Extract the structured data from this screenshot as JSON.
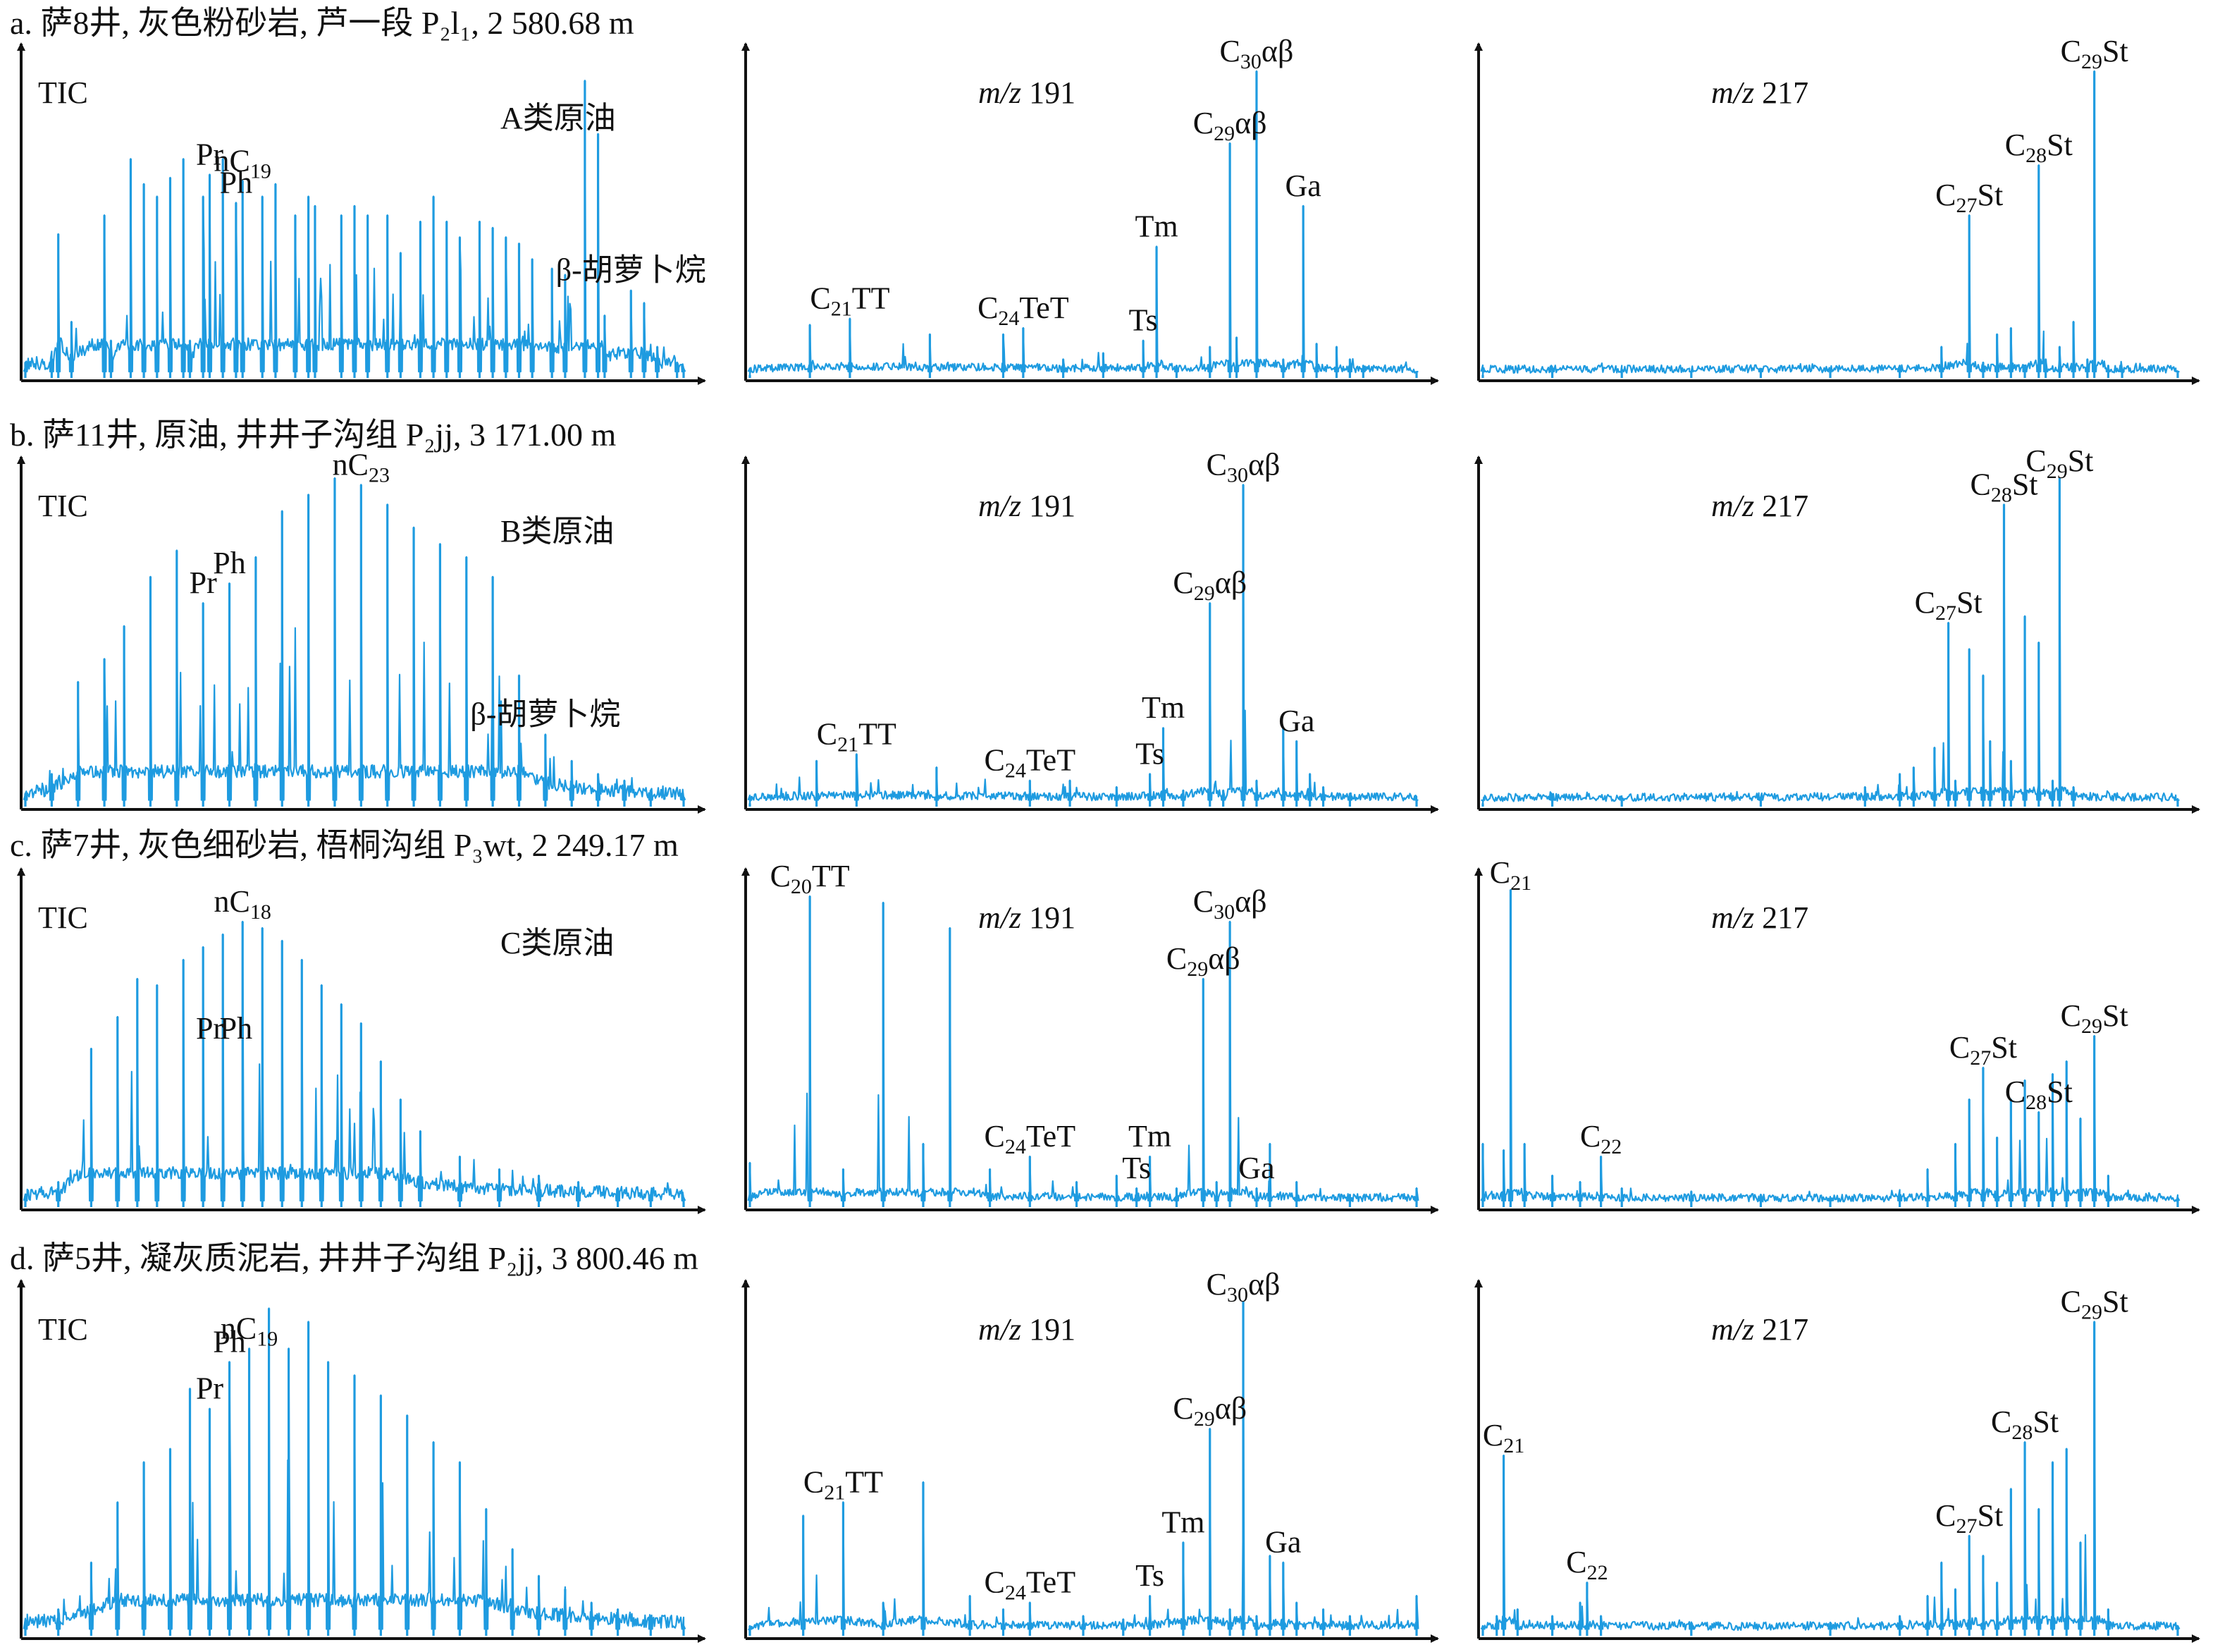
{
  "figure": {
    "colors": {
      "trace": "#1e9be0",
      "axis": "#111111",
      "text": "#111111"
    },
    "rows": [
      {
        "id": "a",
        "title": "a. 萨8井, 灰色粉砂岩, 芦一段 P₂l₁, 2 580.68 m",
        "panels": [
          {
            "type": "TIC",
            "title": "TIC",
            "oil_class": "A类原油",
            "peak_labels": [
              "nC19",
              "Pr",
              "Ph",
              "β-胡萝卜烷"
            ]
          },
          {
            "type": "m/z 191",
            "title": "m/z 191",
            "peak_labels": [
              "C21TT",
              "C24TeT",
              "Ts",
              "Tm",
              "C29αβ",
              "C30αβ",
              "Ga"
            ]
          },
          {
            "type": "m/z 217",
            "title": "m/z 217",
            "peak_labels": [
              "C27St",
              "C28St",
              "C29St"
            ]
          }
        ]
      },
      {
        "id": "b",
        "title": "b. 萨11井, 原油, 井井子沟组 P₂jj, 3 171.00 m",
        "panels": [
          {
            "type": "TIC",
            "title": "TIC",
            "oil_class": "B类原油",
            "peak_labels": [
              "nC23",
              "Pr",
              "Ph",
              "β-胡萝卜烷"
            ]
          },
          {
            "type": "m/z 191",
            "title": "m/z 191",
            "peak_labels": [
              "C21TT",
              "C24TeT",
              "Ts",
              "Tm",
              "C29αβ",
              "C30αβ",
              "Ga"
            ]
          },
          {
            "type": "m/z 217",
            "title": "m/z 217",
            "peak_labels": [
              "C27St",
              "C28St",
              "C29St"
            ]
          }
        ]
      },
      {
        "id": "c",
        "title": "c. 萨7井, 灰色细砂岩, 梧桐沟组 P₃wt, 2 249.17 m",
        "panels": [
          {
            "type": "TIC",
            "title": "TIC",
            "oil_class": "C类原油",
            "peak_labels": [
              "nC18",
              "Pr",
              "Ph"
            ]
          },
          {
            "type": "m/z 191",
            "title": "m/z 191",
            "peak_labels": [
              "C20TT",
              "C24TeT",
              "Ts",
              "Tm",
              "C29αβ",
              "C30αβ",
              "Ga"
            ]
          },
          {
            "type": "m/z 217",
            "title": "m/z 217",
            "peak_labels": [
              "C21",
              "C22",
              "C27St",
              "C28St",
              "C29St"
            ]
          }
        ]
      },
      {
        "id": "d",
        "title": "d. 萨5井, 凝灰质泥岩, 井井子沟组 P₂jj, 3 800.46 m",
        "panels": [
          {
            "type": "TIC",
            "title": "TIC",
            "peak_labels": [
              "nC19",
              "Pr",
              "Ph"
            ]
          },
          {
            "type": "m/z 191",
            "title": "m/z 191",
            "peak_labels": [
              "C21TT",
              "C24TeT",
              "Ts",
              "Tm",
              "C29αβ",
              "C30αβ",
              "Ga"
            ]
          },
          {
            "type": "m/z 217",
            "title": "m/z 217",
            "peak_labels": [
              "C21",
              "C22",
              "C27St",
              "C28St",
              "C29St"
            ]
          }
        ]
      }
    ]
  },
  "chart_data": [
    {
      "type": "line",
      "row": "a",
      "title": "TIC",
      "annotation": "A类原油",
      "x": [
        0,
        4,
        5,
        7,
        12,
        13,
        16,
        18,
        20,
        22,
        24,
        25,
        27,
        28,
        30,
        32,
        33,
        36,
        38,
        41,
        43,
        44,
        48,
        50,
        52,
        55,
        57,
        60,
        62,
        64,
        66,
        69,
        71,
        73,
        75,
        77,
        80,
        82,
        85,
        87,
        88,
        92,
        94,
        96,
        99,
        100
      ],
      "y": [
        5,
        6,
        46,
        18,
        52,
        12,
        70,
        62,
        58,
        64,
        70,
        12,
        58,
        65,
        70,
        56,
        63,
        58,
        62,
        52,
        58,
        55,
        52,
        55,
        52,
        52,
        40,
        50,
        58,
        50,
        45,
        50,
        48,
        45,
        43,
        38,
        35,
        33,
        95,
        78,
        20,
        28,
        24,
        10,
        5,
        3
      ],
      "peaks": [
        {
          "label": "Pr",
          "x": 28
        },
        {
          "label": "Ph",
          "x": 32
        },
        {
          "label": "nC19",
          "x": 33
        },
        {
          "label": "β-胡萝卜烷",
          "x": 92
        }
      ]
    },
    {
      "type": "line",
      "row": "a",
      "title": "m/z 191",
      "x": [
        0,
        9,
        15,
        27,
        38,
        41,
        47,
        53,
        59,
        61,
        64,
        69,
        72,
        73,
        76,
        80,
        83,
        85,
        88,
        90,
        92,
        100
      ],
      "y": [
        1,
        17,
        19,
        14,
        14,
        16,
        6,
        8,
        12,
        42,
        4,
        10,
        75,
        13,
        98,
        6,
        55,
        11,
        10,
        6,
        4,
        2
      ],
      "peaks": [
        {
          "label": "C21TT",
          "x": 15
        },
        {
          "label": "C24TeT",
          "x": 41
        },
        {
          "label": "Ts",
          "x": 59
        },
        {
          "label": "Tm",
          "x": 61
        },
        {
          "label": "C29αβ",
          "x": 72
        },
        {
          "label": "C30αβ",
          "x": 76
        },
        {
          "label": "Ga",
          "x": 83
        }
      ]
    },
    {
      "type": "line",
      "row": "a",
      "title": "m/z 217",
      "x": [
        0,
        10,
        20,
        30,
        40,
        50,
        60,
        66,
        70,
        72,
        74,
        76,
        78,
        80,
        81,
        83,
        85,
        87,
        88,
        90,
        92,
        100
      ],
      "y": [
        1,
        2,
        2,
        2,
        3,
        2,
        4,
        10,
        52,
        5,
        14,
        16,
        4,
        68,
        6,
        10,
        18,
        6,
        98,
        4,
        3,
        2
      ],
      "peaks": [
        {
          "label": "C27St",
          "x": 70
        },
        {
          "label": "C28St",
          "x": 80
        },
        {
          "label": "C29St",
          "x": 88
        }
      ]
    },
    {
      "type": "line",
      "row": "b",
      "title": "TIC",
      "annotation": "B类原油",
      "x": [
        0,
        4,
        8,
        12,
        15,
        19,
        23,
        27,
        31,
        35,
        39,
        43,
        47,
        51,
        55,
        59,
        63,
        67,
        71,
        75,
        79,
        83,
        87,
        91,
        95,
        100
      ],
      "y": [
        4,
        10,
        38,
        45,
        55,
        70,
        78,
        62,
        68,
        76,
        90,
        95,
        100,
        98,
        92,
        85,
        80,
        76,
        70,
        40,
        22,
        14,
        10,
        8,
        5,
        3
      ],
      "peaks": [
        {
          "label": "Pr",
          "x": 27
        },
        {
          "label": "Ph",
          "x": 31
        },
        {
          "label": "nC23",
          "x": 51
        },
        {
          "label": "β-胡萝卜烷",
          "x": 79
        }
      ]
    },
    {
      "type": "line",
      "row": "b",
      "title": "m/z 191",
      "x": [
        0,
        10,
        16,
        28,
        42,
        48,
        55,
        60,
        62,
        65,
        69,
        71,
        74,
        76,
        80,
        82,
        84,
        86,
        90,
        100
      ],
      "y": [
        1,
        14,
        16,
        12,
        8,
        8,
        6,
        10,
        24,
        5,
        62,
        5,
        98,
        8,
        24,
        20,
        10,
        6,
        4,
        2
      ],
      "peaks": [
        {
          "label": "C21TT",
          "x": 16
        },
        {
          "label": "C24TeT",
          "x": 42
        },
        {
          "label": "Ts",
          "x": 60
        },
        {
          "label": "Tm",
          "x": 62
        },
        {
          "label": "C29αβ",
          "x": 69
        },
        {
          "label": "C30αβ",
          "x": 74
        },
        {
          "label": "Ga",
          "x": 82
        }
      ]
    },
    {
      "type": "line",
      "row": "b",
      "title": "m/z 217",
      "x": [
        0,
        10,
        20,
        40,
        55,
        60,
        62,
        65,
        67,
        68,
        70,
        72,
        73,
        75,
        76,
        78,
        80,
        82,
        83,
        85,
        100
      ],
      "y": [
        1,
        3,
        2,
        3,
        6,
        10,
        12,
        18,
        56,
        8,
        48,
        40,
        20,
        92,
        14,
        58,
        50,
        8,
        100,
        6,
        2
      ],
      "peaks": [
        {
          "label": "C27St",
          "x": 67
        },
        {
          "label": "C28St",
          "x": 75
        },
        {
          "label": "C29St",
          "x": 83
        }
      ]
    },
    {
      "type": "line",
      "row": "c",
      "title": "TIC",
      "annotation": "C类原油",
      "x": [
        0,
        5,
        10,
        14,
        17,
        20,
        24,
        27,
        30,
        33,
        36,
        39,
        42,
        45,
        48,
        51,
        54,
        57,
        60,
        66,
        72,
        78,
        84,
        90,
        95,
        100
      ],
      "y": [
        3,
        8,
        50,
        60,
        72,
        70,
        78,
        82,
        86,
        90,
        88,
        84,
        78,
        70,
        64,
        58,
        46,
        34,
        24,
        16,
        12,
        10,
        8,
        6,
        4,
        3
      ],
      "peaks": [
        {
          "label": "Pr",
          "x": 28
        },
        {
          "label": "Ph",
          "x": 32
        },
        {
          "label": "nC18",
          "x": 33
        }
      ]
    },
    {
      "type": "line",
      "row": "c",
      "title": "m/z 191",
      "x": [
        0,
        9,
        14,
        20,
        26,
        30,
        36,
        42,
        49,
        55,
        58,
        60,
        64,
        68,
        70,
        72,
        76,
        78,
        82,
        90,
        100
      ],
      "y": [
        14,
        98,
        12,
        96,
        20,
        88,
        12,
        16,
        8,
        10,
        6,
        16,
        6,
        72,
        8,
        90,
        6,
        20,
        8,
        4,
        6
      ],
      "peaks": [
        {
          "label": "C20TT",
          "x": 9
        },
        {
          "label": "C24TeT",
          "x": 42
        },
        {
          "label": "Ts",
          "x": 58
        },
        {
          "label": "Tm",
          "x": 60
        },
        {
          "label": "C29αβ",
          "x": 68
        },
        {
          "label": "C30αβ",
          "x": 72
        },
        {
          "label": "Ga",
          "x": 76
        }
      ]
    },
    {
      "type": "line",
      "row": "c",
      "title": "m/z 217",
      "x": [
        0,
        3,
        4,
        6,
        10,
        14,
        17,
        20,
        30,
        40,
        50,
        60,
        64,
        68,
        70,
        72,
        74,
        76,
        78,
        80,
        82,
        84,
        86,
        88,
        90,
        100
      ],
      "y": [
        20,
        18,
        100,
        20,
        10,
        8,
        16,
        6,
        5,
        4,
        3,
        4,
        12,
        20,
        34,
        44,
        22,
        34,
        40,
        30,
        42,
        46,
        28,
        54,
        10,
        3
      ],
      "peaks": [
        {
          "label": "C21",
          "x": 4
        },
        {
          "label": "C22",
          "x": 17
        },
        {
          "label": "C27St",
          "x": 72
        },
        {
          "label": "C28St",
          "x": 80
        },
        {
          "label": "C29St",
          "x": 88
        }
      ]
    },
    {
      "type": "line",
      "row": "d",
      "title": "TIC",
      "x": [
        0,
        5,
        10,
        14,
        18,
        22,
        25,
        28,
        31,
        34,
        37,
        40,
        43,
        46,
        50,
        54,
        58,
        62,
        66,
        70,
        74,
        78,
        82,
        86,
        90,
        95,
        100
      ],
      "y": [
        3,
        8,
        22,
        40,
        52,
        56,
        74,
        68,
        82,
        86,
        98,
        86,
        94,
        82,
        78,
        72,
        66,
        58,
        52,
        38,
        26,
        18,
        14,
        10,
        8,
        5,
        3
      ],
      "peaks": [
        {
          "label": "Pr",
          "x": 28
        },
        {
          "label": "Ph",
          "x": 31
        },
        {
          "label": "nC19",
          "x": 34
        }
      ]
    },
    {
      "type": "line",
      "row": "d",
      "title": "m/z 191",
      "x": [
        0,
        8,
        14,
        20,
        26,
        33,
        38,
        42,
        50,
        56,
        60,
        65,
        69,
        72,
        74,
        76,
        78,
        80,
        82,
        86,
        90,
        100
      ],
      "y": [
        3,
        36,
        40,
        10,
        46,
        12,
        8,
        10,
        6,
        5,
        12,
        28,
        62,
        8,
        100,
        6,
        24,
        22,
        10,
        8,
        6,
        12
      ],
      "peaks": [
        {
          "label": "C21TT",
          "x": 14
        },
        {
          "label": "C24TeT",
          "x": 42
        },
        {
          "label": "Ts",
          "x": 60
        },
        {
          "label": "Tm",
          "x": 65
        },
        {
          "label": "C29αβ",
          "x": 69
        },
        {
          "label": "C30αβ",
          "x": 74
        },
        {
          "label": "Ga",
          "x": 80
        }
      ]
    },
    {
      "type": "line",
      "row": "d",
      "title": "m/z 217",
      "x": [
        0,
        2,
        3,
        5,
        10,
        14,
        15,
        17,
        30,
        50,
        60,
        64,
        66,
        68,
        70,
        72,
        74,
        76,
        78,
        80,
        82,
        84,
        86,
        88,
        90,
        100
      ],
      "y": [
        3,
        6,
        54,
        8,
        6,
        10,
        16,
        6,
        4,
        4,
        6,
        12,
        22,
        14,
        30,
        24,
        16,
        44,
        58,
        38,
        52,
        56,
        28,
        94,
        8,
        3
      ],
      "peaks": [
        {
          "label": "C21",
          "x": 3
        },
        {
          "label": "C22",
          "x": 15
        },
        {
          "label": "C27St",
          "x": 70
        },
        {
          "label": "C28St",
          "x": 78
        },
        {
          "label": "C29St",
          "x": 88
        }
      ]
    }
  ]
}
